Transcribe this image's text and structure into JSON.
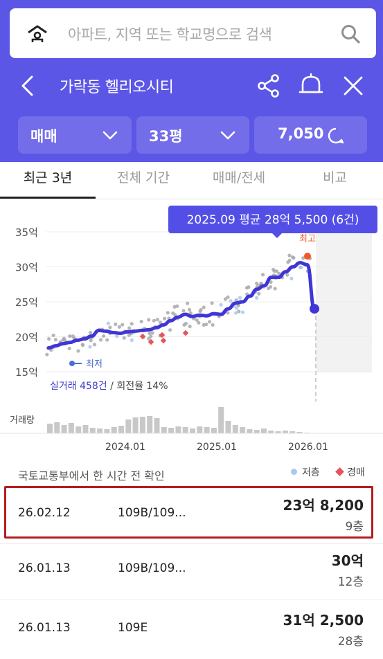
{
  "search": {
    "placeholder": "아파트, 지역 또는 학교명으로 검색"
  },
  "titlebar": {
    "title": "가락동 헬리오시티"
  },
  "filters": {
    "trade": "매매",
    "size": "33평",
    "households": "7,050"
  },
  "tabs": [
    "최근 3년",
    "전체 기간",
    "매매/전세",
    "비교"
  ],
  "chart": {
    "tooltip": "2025.09 평균 28억 5,500 (6건)",
    "max_label": "최고",
    "min_label": "최저",
    "summary_count": "실거래 458건",
    "summary_rest": " / 회전율 14%",
    "volume_label": "거래량",
    "colors": {
      "line": "#4035d6",
      "max": "#ef5a28",
      "dots": "#a9a9a9",
      "low": "#a8c8ef",
      "auction": "#e4545a"
    }
  },
  "chart_data": {
    "type": "line",
    "y_ticks": [
      "35억",
      "30억",
      "25억",
      "20억",
      "15억"
    ],
    "ylim": [
      15,
      35
    ],
    "x_ticks": [
      "2024.01",
      "2025.01",
      "2026.01"
    ],
    "series": [
      {
        "values": [
          18.4,
          18.7,
          19.0,
          19.2,
          19.5,
          19.7,
          20.1,
          20.9,
          20.8,
          20.6,
          20.5,
          20.7,
          20.8,
          20.9,
          21.0,
          21.3,
          21.7,
          22.3,
          22.8,
          23.2,
          22.9,
          23.1,
          23.0,
          23.3,
          23.2,
          24.0,
          24.8,
          25.0,
          25.8,
          26.8,
          27.3,
          28.5,
          28.5,
          29.3,
          30.0,
          30.6,
          30.3,
          24.0
        ]
      }
    ]
  },
  "list": {
    "notice": "국토교통부에서 한 시간 전 확인",
    "legend_low": "저층",
    "legend_auction": "경매",
    "rows": [
      {
        "date": "26.02.12",
        "type": "109B/109...",
        "price": "23억 8,200",
        "floor": "9층"
      },
      {
        "date": "26.01.13",
        "type": "109B/109...",
        "price": "30억",
        "floor": "12층"
      },
      {
        "date": "26.01.13",
        "type": "109E",
        "price": "31억 2,500",
        "floor": "28층"
      }
    ]
  }
}
